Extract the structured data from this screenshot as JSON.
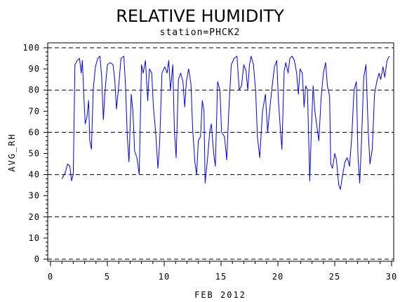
{
  "chart_data": {
    "type": "line",
    "title": "RELATIVE HUMIDITY",
    "subtitle": "station=PHCK2",
    "xlabel": "FEB 2012",
    "ylabel": "AVG_RH",
    "xlim": [
      0,
      30
    ],
    "ylim": [
      0,
      100
    ],
    "x_ticks": [
      0,
      5,
      10,
      15,
      20,
      25,
      30
    ],
    "y_ticks": [
      0,
      10,
      20,
      30,
      40,
      50,
      60,
      70,
      80,
      90,
      100
    ],
    "reference_lines": [
      0,
      20,
      40,
      60,
      80,
      100
    ],
    "grid": false,
    "line_color": "#0000ff",
    "series": [
      {
        "values": [
          [
            1.0,
            38
          ],
          [
            1.3,
            41
          ],
          [
            1.5,
            45
          ],
          [
            1.7,
            44
          ],
          [
            1.85,
            37
          ],
          [
            2.0,
            40
          ],
          [
            2.15,
            92
          ],
          [
            2.35,
            94
          ],
          [
            2.55,
            95
          ],
          [
            2.7,
            88
          ],
          [
            2.8,
            94
          ],
          [
            2.95,
            75
          ],
          [
            3.05,
            64
          ],
          [
            3.2,
            67
          ],
          [
            3.35,
            75
          ],
          [
            3.45,
            56
          ],
          [
            3.6,
            52
          ],
          [
            3.75,
            80
          ],
          [
            3.95,
            91
          ],
          [
            4.15,
            95
          ],
          [
            4.35,
            96
          ],
          [
            4.5,
            86
          ],
          [
            4.65,
            66
          ],
          [
            4.8,
            80
          ],
          [
            5.0,
            92
          ],
          [
            5.25,
            93
          ],
          [
            5.5,
            92
          ],
          [
            5.65,
            85
          ],
          [
            5.8,
            71
          ],
          [
            6.0,
            82
          ],
          [
            6.2,
            95
          ],
          [
            6.45,
            96
          ],
          [
            6.6,
            82
          ],
          [
            6.75,
            58
          ],
          [
            6.9,
            46
          ],
          [
            7.1,
            78
          ],
          [
            7.25,
            70
          ],
          [
            7.4,
            51
          ],
          [
            7.6,
            48
          ],
          [
            7.8,
            40
          ],
          [
            8.0,
            92
          ],
          [
            8.15,
            88
          ],
          [
            8.35,
            94
          ],
          [
            8.55,
            75
          ],
          [
            8.7,
            90
          ],
          [
            8.9,
            88
          ],
          [
            9.05,
            72
          ],
          [
            9.25,
            60
          ],
          [
            9.45,
            43
          ],
          [
            9.6,
            55
          ],
          [
            9.8,
            88
          ],
          [
            10.05,
            91
          ],
          [
            10.25,
            88
          ],
          [
            10.4,
            94
          ],
          [
            10.55,
            80
          ],
          [
            10.75,
            92
          ],
          [
            10.9,
            60
          ],
          [
            11.05,
            48
          ],
          [
            11.25,
            85
          ],
          [
            11.45,
            88
          ],
          [
            11.65,
            84
          ],
          [
            11.8,
            72
          ],
          [
            11.95,
            84
          ],
          [
            12.15,
            90
          ],
          [
            12.35,
            83
          ],
          [
            12.5,
            62
          ],
          [
            12.7,
            46
          ],
          [
            12.85,
            40
          ],
          [
            13.0,
            56
          ],
          [
            13.2,
            58
          ],
          [
            13.35,
            75
          ],
          [
            13.5,
            70
          ],
          [
            13.6,
            36
          ],
          [
            13.8,
            47
          ],
          [
            14.0,
            60
          ],
          [
            14.15,
            64
          ],
          [
            14.35,
            50
          ],
          [
            14.5,
            44
          ],
          [
            14.7,
            84
          ],
          [
            14.9,
            80
          ],
          [
            15.05,
            60
          ],
          [
            15.3,
            58
          ],
          [
            15.5,
            47
          ],
          [
            15.7,
            72
          ],
          [
            15.9,
            92
          ],
          [
            16.15,
            95
          ],
          [
            16.4,
            96
          ],
          [
            16.6,
            80
          ],
          [
            16.8,
            82
          ],
          [
            17.0,
            92
          ],
          [
            17.2,
            89
          ],
          [
            17.35,
            80
          ],
          [
            17.5,
            92
          ],
          [
            17.65,
            96
          ],
          [
            17.85,
            92
          ],
          [
            18.05,
            79
          ],
          [
            18.2,
            58
          ],
          [
            18.4,
            48
          ],
          [
            18.65,
            70
          ],
          [
            18.9,
            78
          ],
          [
            19.1,
            60
          ],
          [
            19.3,
            72
          ],
          [
            19.5,
            82
          ],
          [
            19.7,
            91
          ],
          [
            19.9,
            94
          ],
          [
            20.05,
            75
          ],
          [
            20.2,
            63
          ],
          [
            20.35,
            52
          ],
          [
            20.55,
            89
          ],
          [
            20.7,
            93
          ],
          [
            20.9,
            88
          ],
          [
            21.05,
            95
          ],
          [
            21.25,
            96
          ],
          [
            21.45,
            94
          ],
          [
            21.65,
            88
          ],
          [
            21.8,
            78
          ],
          [
            21.95,
            90
          ],
          [
            22.15,
            88
          ],
          [
            22.3,
            72
          ],
          [
            22.45,
            82
          ],
          [
            22.6,
            80
          ],
          [
            22.8,
            37
          ],
          [
            22.95,
            62
          ],
          [
            23.1,
            82
          ],
          [
            23.25,
            70
          ],
          [
            23.4,
            64
          ],
          [
            23.6,
            56
          ],
          [
            23.8,
            76
          ],
          [
            24.0,
            88
          ],
          [
            24.2,
            93
          ],
          [
            24.35,
            82
          ],
          [
            24.55,
            77
          ],
          [
            24.65,
            45
          ],
          [
            24.8,
            43
          ],
          [
            25.0,
            50
          ],
          [
            25.15,
            47
          ],
          [
            25.35,
            35
          ],
          [
            25.5,
            33
          ],
          [
            25.7,
            40
          ],
          [
            25.9,
            46
          ],
          [
            26.1,
            48
          ],
          [
            26.3,
            44
          ],
          [
            26.5,
            58
          ],
          [
            26.7,
            80
          ],
          [
            26.9,
            84
          ],
          [
            27.05,
            48
          ],
          [
            27.2,
            36
          ],
          [
            27.35,
            55
          ],
          [
            27.55,
            86
          ],
          [
            27.75,
            92
          ],
          [
            27.95,
            60
          ],
          [
            28.1,
            45
          ],
          [
            28.3,
            52
          ],
          [
            28.5,
            78
          ],
          [
            28.7,
            84
          ],
          [
            28.9,
            88
          ],
          [
            29.05,
            85
          ],
          [
            29.25,
            91
          ],
          [
            29.4,
            86
          ],
          [
            29.6,
            94
          ],
          [
            29.8,
            96
          ]
        ]
      }
    ]
  }
}
